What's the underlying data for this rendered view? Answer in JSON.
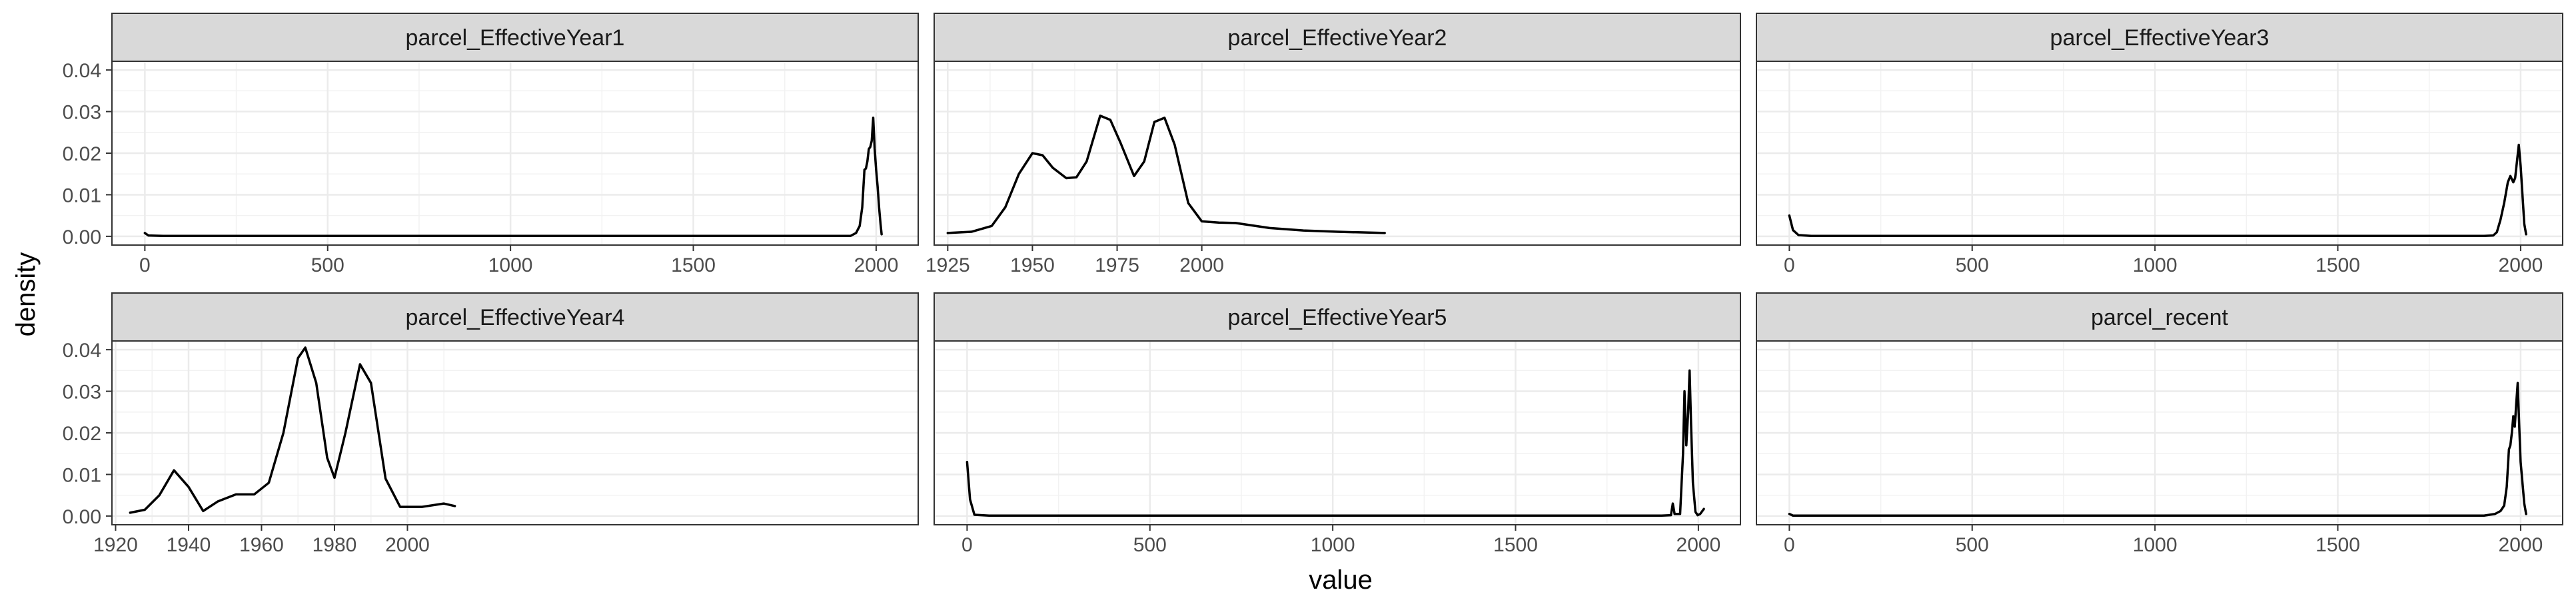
{
  "chart_data": {
    "type": "line",
    "xlabel": "value",
    "ylabel": "density",
    "ylim": [
      0,
      0.04
    ],
    "y_ticks": [
      0.0,
      0.01,
      0.02,
      0.03,
      0.04
    ],
    "y_tick_labels": [
      "0.00",
      "0.01",
      "0.02",
      "0.03",
      "0.04"
    ],
    "grid": true,
    "facets": [
      {
        "title": "parcel_EffectiveYear1",
        "xlim": [
          -90,
          2115
        ],
        "x_ticks": [
          0,
          500,
          1000,
          1500,
          2000
        ],
        "x": [
          0,
          10,
          50,
          500,
          1000,
          1500,
          1900,
          1930,
          1945,
          1955,
          1962,
          1968,
          1972,
          1976,
          1980,
          1984,
          1988,
          1992,
          1996,
          2000,
          2004,
          2008,
          2012,
          2015
        ],
        "y": [
          0.0008,
          0.0002,
          0.0001,
          0.0001,
          0.0001,
          0.0001,
          0.0001,
          0.0001,
          0.0008,
          0.0025,
          0.007,
          0.016,
          0.0163,
          0.018,
          0.021,
          0.0215,
          0.023,
          0.0285,
          0.021,
          0.016,
          0.012,
          0.007,
          0.003,
          0.0005
        ]
      },
      {
        "title": "parcel_EffectiveYear2",
        "xlim": [
          1921,
          2159
        ],
        "x_ticks": [
          1925,
          1950,
          1975,
          2000
        ],
        "x": [
          1925,
          1932,
          1938,
          1942,
          1946,
          1950,
          1953,
          1956,
          1960,
          1963,
          1966,
          1970,
          1973,
          1976,
          1980,
          1983,
          1986,
          1989,
          1992,
          1996,
          2000,
          2005,
          2010,
          2020,
          2030,
          2040,
          2054
        ],
        "y": [
          0.0008,
          0.0011,
          0.0025,
          0.007,
          0.015,
          0.02,
          0.0195,
          0.0165,
          0.014,
          0.0142,
          0.018,
          0.029,
          0.028,
          0.0225,
          0.0145,
          0.018,
          0.0275,
          0.0285,
          0.022,
          0.008,
          0.0036,
          0.0033,
          0.0032,
          0.002,
          0.0014,
          0.0011,
          0.0008
        ]
      },
      {
        "title": "parcel_EffectiveYear3",
        "xlim": [
          -90,
          2115
        ],
        "x_ticks": [
          0,
          500,
          1000,
          1500,
          2000
        ],
        "x": [
          0,
          10,
          25,
          60,
          500,
          1000,
          1500,
          1900,
          1925,
          1935,
          1945,
          1955,
          1965,
          1972,
          1980,
          1985,
          1990,
          1995,
          2000,
          2005,
          2010,
          2015
        ],
        "y": [
          0.005,
          0.0015,
          0.0003,
          0.0001,
          0.0001,
          0.0001,
          0.0001,
          0.0001,
          0.0002,
          0.001,
          0.004,
          0.008,
          0.013,
          0.0145,
          0.013,
          0.014,
          0.018,
          0.022,
          0.017,
          0.01,
          0.003,
          0.0005
        ]
      },
      {
        "title": "parcel_EffectiveYear4",
        "xlim": [
          1919,
          2140
        ],
        "x_ticks": [
          1920,
          1940,
          1960,
          1980,
          2000
        ],
        "x": [
          1924,
          1928,
          1932,
          1936,
          1940,
          1944,
          1948,
          1953,
          1958,
          1962,
          1966,
          1970,
          1972,
          1975,
          1978,
          1980,
          1983,
          1987,
          1990,
          1994,
          1998,
          2004,
          2010,
          2013
        ],
        "y": [
          0.0008,
          0.0015,
          0.005,
          0.011,
          0.007,
          0.0012,
          0.0035,
          0.0052,
          0.0052,
          0.008,
          0.02,
          0.038,
          0.0405,
          0.032,
          0.014,
          0.0092,
          0.02,
          0.0365,
          0.032,
          0.009,
          0.0022,
          0.0022,
          0.003,
          0.0024
        ]
      },
      {
        "title": "parcel_EffectiveYear5",
        "xlim": [
          -90,
          2115
        ],
        "x_ticks": [
          0,
          500,
          1000,
          1500,
          2000
        ],
        "x": [
          0,
          8,
          20,
          60,
          500,
          1000,
          1500,
          1900,
          1925,
          1930,
          1935,
          1950,
          1958,
          1962,
          1967,
          1972,
          1976,
          1980,
          1985,
          1992,
          1998,
          2005,
          2015
        ],
        "y": [
          0.013,
          0.004,
          0.0003,
          0.0001,
          0.0001,
          0.0001,
          0.0001,
          0.0001,
          0.0002,
          0.003,
          0.0005,
          0.0005,
          0.015,
          0.03,
          0.017,
          0.025,
          0.035,
          0.022,
          0.008,
          0.001,
          0.0002,
          0.0005,
          0.0017
        ]
      },
      {
        "title": "parcel_recent",
        "xlim": [
          -90,
          2115
        ],
        "x_ticks": [
          0,
          500,
          1000,
          1500,
          2000
        ],
        "x": [
          0,
          10,
          30,
          500,
          1000,
          1500,
          1900,
          1930,
          1945,
          1955,
          1962,
          1968,
          1972,
          1976,
          1980,
          1984,
          1988,
          1992,
          1996,
          2000,
          2005,
          2010,
          2015
        ],
        "y": [
          0.0005,
          0.0001,
          0.0001,
          0.0001,
          0.0001,
          0.0001,
          0.0001,
          0.0005,
          0.0012,
          0.0025,
          0.007,
          0.016,
          0.017,
          0.02,
          0.024,
          0.0215,
          0.027,
          0.032,
          0.022,
          0.013,
          0.008,
          0.003,
          0.0005
        ]
      }
    ]
  }
}
